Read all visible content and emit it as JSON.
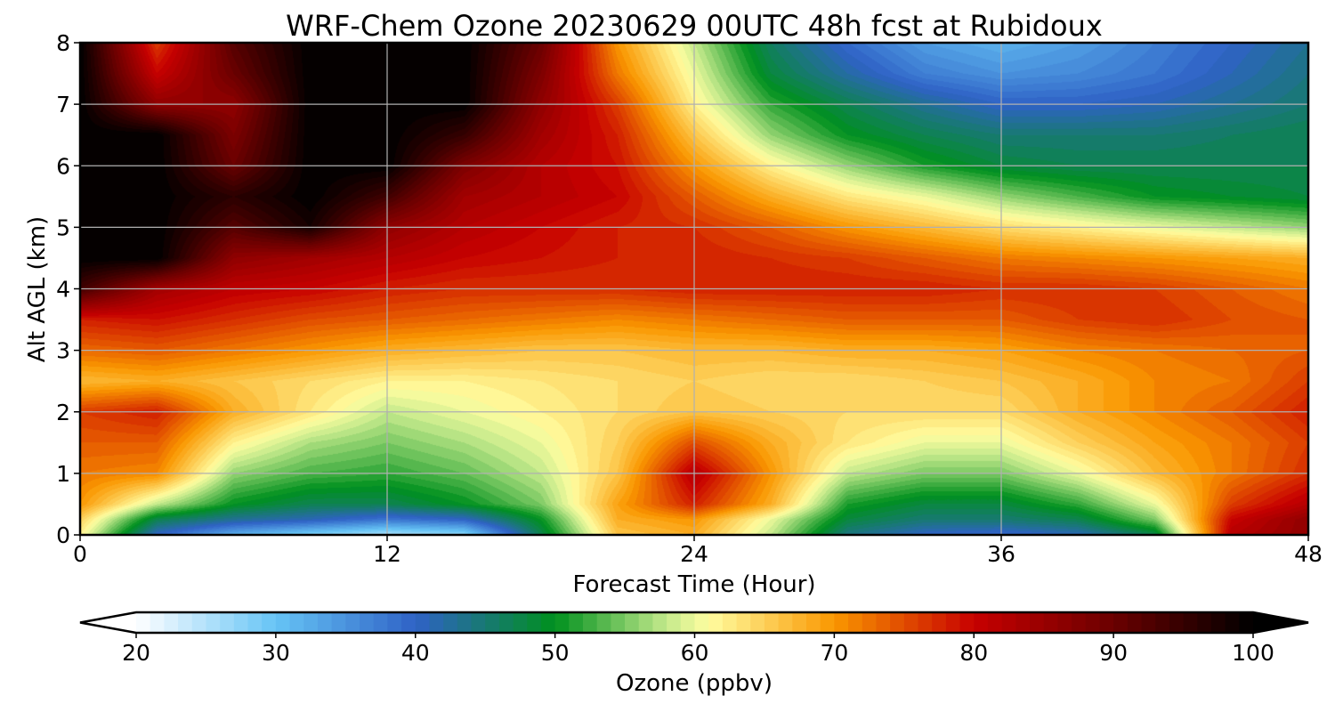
{
  "chart_data": {
    "type": "heatmap",
    "title": "WRF-Chem Ozone  20230629 00UTC 48h fcst at Rubidoux",
    "xlabel": "Forecast Time (Hour)",
    "ylabel": "Alt AGL (km)",
    "xlim": [
      0,
      48
    ],
    "ylim": [
      0,
      8
    ],
    "x_ticks": [
      0,
      12,
      24,
      36,
      48
    ],
    "y_ticks": [
      0,
      1,
      2,
      3,
      4,
      5,
      6,
      7,
      8
    ],
    "grid": true,
    "x": [
      0,
      3,
      6,
      9,
      12,
      15,
      18,
      21,
      24,
      27,
      30,
      33,
      36,
      39,
      42,
      45,
      48
    ],
    "y": [
      0,
      0.25,
      0.5,
      1,
      1.5,
      2,
      2.5,
      3,
      3.5,
      4,
      4.5,
      5,
      5.5,
      6,
      6.5,
      7,
      7.5,
      8
    ],
    "z": [
      [
        62,
        40,
        32,
        28,
        25,
        27,
        47,
        66,
        68,
        58,
        44,
        40,
        39,
        41,
        47,
        82,
        86
      ],
      [
        65,
        47,
        43,
        41,
        38,
        40,
        50,
        68,
        70,
        60,
        48,
        45,
        45,
        47,
        55,
        80,
        86
      ],
      [
        70,
        58,
        50,
        47,
        47,
        50,
        55,
        69,
        78,
        68,
        51,
        48,
        48,
        52,
        60,
        76,
        82
      ],
      [
        72,
        71,
        56,
        53,
        52,
        54,
        58,
        66,
        82,
        70,
        58,
        55,
        55,
        60,
        67,
        72,
        77
      ],
      [
        74,
        74,
        62,
        57,
        55,
        57,
        60,
        65,
        75,
        68,
        63,
        60,
        60,
        65,
        69,
        72,
        76
      ],
      [
        76,
        78,
        68,
        63,
        58,
        60,
        62,
        64,
        66,
        65,
        64,
        64,
        64,
        68,
        71,
        74,
        78
      ],
      [
        67,
        68,
        66,
        64,
        62,
        62,
        63,
        64,
        65,
        64,
        64,
        65,
        66,
        68,
        71,
        72,
        76
      ],
      [
        73,
        74,
        72,
        70,
        68,
        67,
        66,
        66,
        67,
        67,
        68,
        68,
        69,
        71,
        72,
        73,
        74
      ],
      [
        78,
        79,
        77,
        75,
        74,
        73,
        72,
        71,
        72,
        73,
        74,
        74,
        74,
        76,
        77,
        75,
        74
      ],
      [
        94,
        84,
        81,
        80,
        78,
        77,
        77,
        77,
        78,
        78,
        78,
        78,
        77,
        77,
        76,
        74,
        72
      ],
      [
        100,
        100,
        86,
        84,
        82,
        80,
        79,
        78,
        78,
        77,
        76,
        74,
        72,
        71,
        70,
        69,
        68
      ],
      [
        100,
        100,
        92,
        98,
        86,
        82,
        80,
        78,
        77,
        74,
        70,
        67,
        64,
        62,
        60,
        58,
        56
      ],
      [
        100,
        100,
        96,
        100,
        94,
        84,
        82,
        80,
        74,
        68,
        63,
        60,
        56,
        53,
        50,
        49,
        48
      ],
      [
        100,
        100,
        90,
        100,
        100,
        88,
        82,
        79,
        70,
        62,
        56,
        51,
        48,
        47,
        47,
        47,
        47
      ],
      [
        100,
        100,
        88,
        100,
        100,
        95,
        84,
        78,
        66,
        56,
        50,
        47,
        45,
        45,
        45,
        46,
        47
      ],
      [
        100,
        86,
        86,
        100,
        100,
        100,
        86,
        76,
        62,
        52,
        47,
        43,
        40,
        40,
        41,
        43,
        45
      ],
      [
        100,
        80,
        90,
        100,
        100,
        100,
        88,
        72,
        60,
        48,
        42,
        37,
        35,
        36,
        38,
        41,
        44
      ],
      [
        100,
        76,
        92,
        100,
        100,
        100,
        90,
        70,
        58,
        46,
        39,
        34,
        32,
        34,
        37,
        40,
        43
      ]
    ],
    "colorbar": {
      "label": "Ozone  (ppbv)",
      "min": 20,
      "max": 100,
      "ticks": [
        20,
        30,
        40,
        50,
        60,
        70,
        80,
        90,
        100
      ],
      "extend": "both",
      "orientation": "horizontal",
      "position": "bottom",
      "stops": [
        {
          "v": 20,
          "c": "#ffffff"
        },
        {
          "v": 30,
          "c": "#66c4f5"
        },
        {
          "v": 40,
          "c": "#2f62c6"
        },
        {
          "v": 50,
          "c": "#00901e"
        },
        {
          "v": 58,
          "c": "#c4ea8c"
        },
        {
          "v": 61,
          "c": "#fffda0"
        },
        {
          "v": 70,
          "c": "#fa9700"
        },
        {
          "v": 80,
          "c": "#c70000"
        },
        {
          "v": 90,
          "c": "#6a0000"
        },
        {
          "v": 100,
          "c": "#000000"
        }
      ]
    }
  }
}
